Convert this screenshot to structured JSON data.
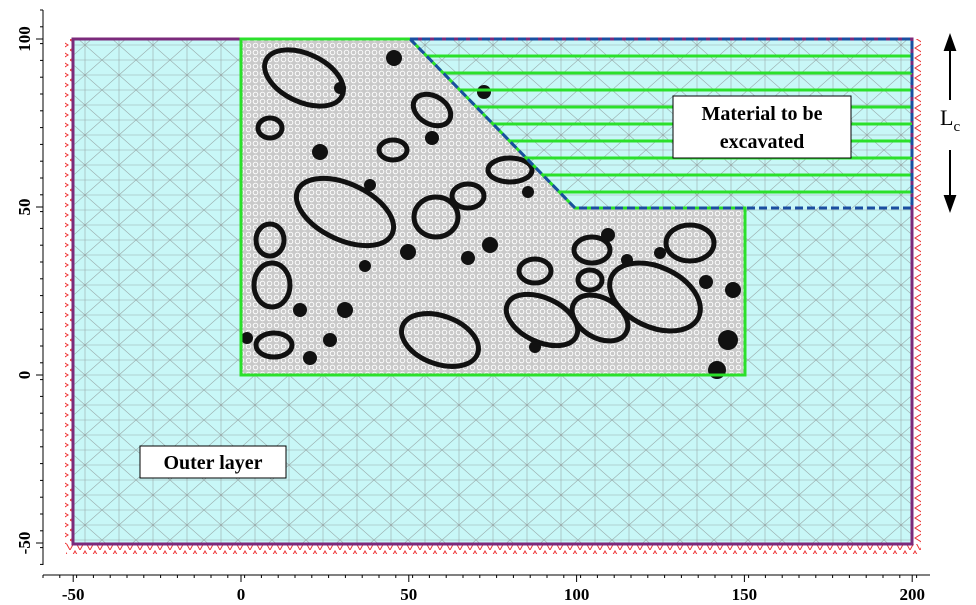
{
  "axes": {
    "x_ticks": [
      -50,
      0,
      50,
      100,
      150,
      200
    ],
    "y_ticks": [
      -50,
      0,
      50,
      100
    ]
  },
  "labels": {
    "excavated": [
      "Material to be",
      "excavated"
    ],
    "outer_layer": "Outer layer",
    "lc": {
      "main": "L",
      "sub": "c"
    }
  }
}
